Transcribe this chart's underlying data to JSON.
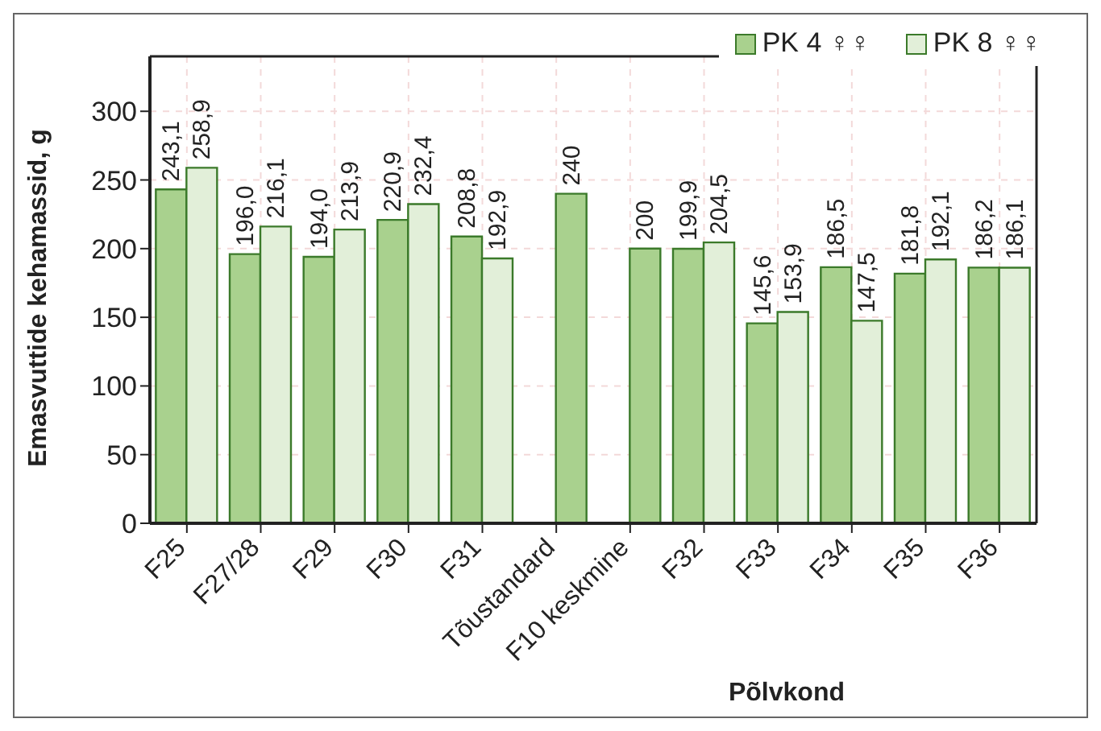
{
  "chart_data": {
    "type": "bar",
    "xlabel": "Põlvkond",
    "ylabel": "Emasvuttide kehamassid, g",
    "categories": [
      "F25",
      "F27/28",
      "F29",
      "F30",
      "F31",
      "Tõustandard",
      "F10 keskmine",
      "F32",
      "F33",
      "F34",
      "F35",
      "F36"
    ],
    "series": [
      {
        "name": "PK 4 ♀♀",
        "color": "#a9d18e",
        "values": [
          243.1,
          196.0,
          194.0,
          220.9,
          208.8,
          null,
          null,
          199.9,
          145.6,
          186.5,
          181.8,
          186.2
        ],
        "value_labels": [
          "243,1",
          "196,0",
          "194,0",
          "220,9",
          "208,8",
          null,
          null,
          "199,9",
          "145,6",
          "186,5",
          "181,8",
          "186,2"
        ]
      },
      {
        "name": "PK 8 ♀♀",
        "color": "#e2efd9",
        "colors": [
          "#e2efd9",
          "#e2efd9",
          "#e2efd9",
          "#e2efd9",
          "#e2efd9",
          "#a9d18e",
          "#a9d18e",
          "#e2efd9",
          "#e2efd9",
          "#e2efd9",
          "#e2efd9",
          "#e2efd9"
        ],
        "values": [
          258.9,
          216.1,
          213.9,
          232.4,
          192.9,
          240,
          200,
          204.5,
          153.9,
          147.5,
          192.1,
          186.1
        ],
        "value_labels": [
          "258,9",
          "216,1",
          "213,9",
          "232,4",
          "192,9",
          "240",
          "200",
          "204,5",
          "153,9",
          "147,5",
          "192,1",
          "186,1"
        ]
      }
    ],
    "ylim": [
      0,
      340
    ],
    "yticks": [
      0,
      50,
      100,
      150,
      200,
      250,
      300
    ],
    "grid": true,
    "legend": "top right"
  }
}
